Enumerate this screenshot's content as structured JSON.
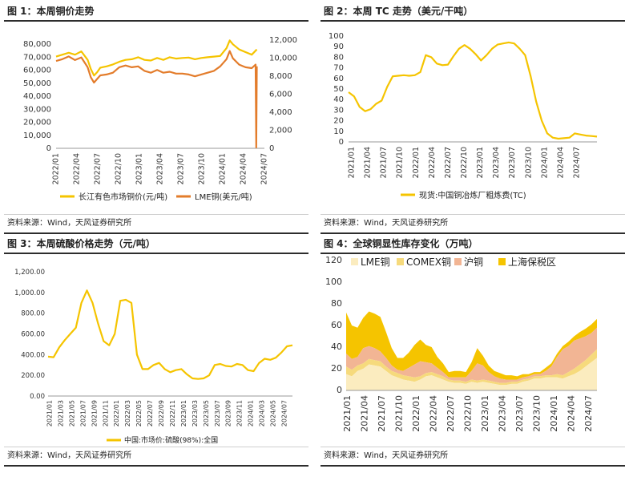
{
  "panels": [
    {
      "title": "图 1：本周铜价走势",
      "source": "资料来源：Wind，天风证券研究所"
    },
    {
      "title": "图 2：本周 TC 走势（美元/干吨）",
      "source": "资料来源：Wind，天风证券研究所"
    },
    {
      "title": "图 3：本周硫酸价格走势（元/吨）",
      "source": "资料来源：Wind，天风证券研究所"
    },
    {
      "title": "图 4：全球铜显性库存变化（万吨）",
      "source": "资料来源：Wind，天风证券研究所"
    }
  ],
  "chart_data": [
    {
      "type": "line",
      "title": "图 1：本周铜价走势",
      "x_ticks": [
        "2022/01",
        "2022/04",
        "2022/07",
        "2022/10",
        "2023/01",
        "2023/04",
        "2023/07",
        "2023/10",
        "2024/01",
        "2024/04",
        "2024/07"
      ],
      "y_left_ticks": [
        "0",
        "10,000",
        "20,000",
        "30,000",
        "40,000",
        "50,000",
        "60,000",
        "70,000",
        "80,000"
      ],
      "y_right_ticks": [
        "0",
        "2,000",
        "4,000",
        "6,000",
        "8,000",
        "10,000",
        "12,000"
      ],
      "ylim_left": [
        0,
        90000
      ],
      "ylim_right": [
        0,
        13000
      ],
      "x_range": [
        0,
        33
      ],
      "legend_position": "bottom",
      "colors": {
        "cj": "#f5c400",
        "lme": "#e37c2b"
      },
      "series": [
        {
          "name": "长江有色市场铜价(元/吨)",
          "axis": "left",
          "x": [
            0,
            1,
            2,
            3,
            4,
            5,
            5.5,
            6,
            6.5,
            7,
            8,
            9,
            10,
            11,
            12,
            13,
            14,
            15,
            16,
            17,
            18,
            19,
            20,
            21,
            22,
            23,
            24,
            25,
            26,
            27,
            27.5,
            28,
            29,
            30,
            31,
            31.8
          ],
          "y": [
            70500,
            72000,
            73500,
            72000,
            74500,
            68000,
            61000,
            56000,
            58500,
            62000,
            63000,
            64500,
            66500,
            68000,
            68500,
            70000,
            68000,
            67500,
            69500,
            68000,
            70000,
            69000,
            69500,
            69800,
            68500,
            69500,
            70000,
            70500,
            71000,
            77000,
            83000,
            80000,
            76000,
            74000,
            72000,
            76000
          ]
        },
        {
          "name": "LME铜(美元/吨)",
          "axis": "right",
          "x": [
            0,
            1,
            2,
            3,
            4,
            5,
            5.5,
            6,
            6.5,
            7,
            8,
            9,
            10,
            11,
            12,
            13,
            14,
            15,
            16,
            17,
            18,
            19,
            20,
            21,
            22,
            23,
            24,
            25,
            26,
            27,
            27.5,
            28,
            29,
            30,
            31,
            31.6,
            31.7,
            31.8
          ],
          "y": [
            9700,
            9900,
            10200,
            9800,
            10100,
            9000,
            7900,
            7300,
            7700,
            8100,
            8200,
            8400,
            9000,
            9200,
            9000,
            9100,
            8600,
            8400,
            8700,
            8400,
            8500,
            8300,
            8300,
            8200,
            8000,
            8200,
            8400,
            8600,
            9100,
            9900,
            10800,
            10000,
            9300,
            9000,
            8900,
            9300,
            100,
            9100
          ]
        }
      ]
    },
    {
      "type": "line",
      "title": "图 2：本周 TC 走势（美元/干吨）",
      "x_ticks": [
        "2021/01",
        "2021/04",
        "2021/07",
        "2021/10",
        "2022/01",
        "2022/04",
        "2022/07",
        "2022/10",
        "2023/01",
        "2023/04",
        "2023/07",
        "2023/10",
        "2024/01",
        "2024/04",
        "2024/07"
      ],
      "y_ticks": [
        "0",
        "10",
        "20",
        "30",
        "40",
        "50",
        "60",
        "70",
        "80",
        "90",
        "100"
      ],
      "ylim": [
        0,
        100
      ],
      "x_range": [
        0,
        45
      ],
      "legend_position": "bottom",
      "colors": {
        "tc": "#f5c400"
      },
      "series": [
        {
          "name": "现货:中国铜冶炼厂粗炼费(TC)",
          "x": [
            0,
            1,
            2,
            3,
            4,
            5,
            6,
            7,
            8,
            9,
            10,
            11,
            12,
            13,
            14,
            15,
            16,
            17,
            18,
            19,
            20,
            21,
            22,
            23,
            24,
            25,
            26,
            27,
            28,
            29,
            30,
            31,
            32,
            33,
            34,
            35,
            36,
            37,
            38,
            39,
            40,
            41,
            42,
            43,
            44,
            45
          ],
          "y": [
            47,
            43,
            33,
            29,
            31,
            36,
            39,
            52,
            62,
            62.5,
            63,
            62.5,
            63,
            66,
            82,
            80,
            74,
            72.5,
            73,
            81,
            88,
            91.5,
            88,
            83,
            77,
            82,
            88,
            92,
            93,
            94,
            93,
            88,
            82,
            62,
            38,
            20,
            8,
            4,
            3,
            3.5,
            4,
            8,
            7,
            6,
            5.5,
            5
          ]
        }
      ]
    },
    {
      "type": "line",
      "title": "图 3：本周硫酸价格走势（元/吨）",
      "x_ticks": [
        "2021/01",
        "2021/03",
        "2021/05",
        "2021/07",
        "2021/09",
        "2021/11",
        "2022/01",
        "2022/03",
        "2022/05",
        "2022/07",
        "2022/09",
        "2022/11",
        "2023/01",
        "2023/03",
        "2023/05",
        "2023/07",
        "2023/09",
        "2023/11",
        "2024/01",
        "2024/03",
        "2024/05",
        "2024/07"
      ],
      "y_ticks": [
        "0.00",
        "200.00",
        "400.00",
        "600.00",
        "800.00",
        "1,000.00",
        "1,200.00"
      ],
      "ylim": [
        0,
        1200
      ],
      "x_range": [
        0,
        44
      ],
      "legend_position": "bottom",
      "colors": {
        "acid": "#f5c400"
      },
      "series": [
        {
          "name": "中国:市场价:硫酸(98%):全国",
          "x": [
            0,
            1,
            2,
            3,
            4,
            5,
            6,
            7,
            8,
            9,
            10,
            11,
            12,
            13,
            14,
            15,
            16,
            17,
            18,
            19,
            20,
            21,
            22,
            23,
            24,
            25,
            26,
            27,
            28,
            29,
            30,
            31,
            32,
            33,
            34,
            35,
            36,
            37,
            38,
            39,
            40,
            41,
            42,
            43,
            44
          ],
          "y": [
            380,
            375,
            470,
            540,
            600,
            660,
            900,
            1020,
            900,
            700,
            530,
            490,
            600,
            920,
            930,
            900,
            400,
            260,
            260,
            300,
            320,
            260,
            230,
            250,
            260,
            210,
            170,
            165,
            170,
            200,
            300,
            310,
            290,
            285,
            310,
            300,
            250,
            240,
            320,
            360,
            350,
            370,
            420,
            480,
            490
          ]
        }
      ]
    },
    {
      "type": "area",
      "title": "图 4：全球铜显性库存变化（万吨）",
      "stacked": true,
      "x_ticks": [
        "2021/01",
        "2021/04",
        "2021/07",
        "2021/10",
        "2022/01",
        "2022/04",
        "2022/07",
        "2022/10",
        "2023/01",
        "2023/04",
        "2023/07",
        "2023/10",
        "2024/01",
        "2024/04",
        "2024/07"
      ],
      "y_ticks": [
        "0",
        "20",
        "40",
        "60",
        "80",
        "100",
        "120"
      ],
      "ylim": [
        0,
        120
      ],
      "x_range": [
        0,
        44
      ],
      "legend_position": "top-left",
      "colors": {
        "lme": "#fbecbf",
        "comex": "#f6da7c",
        "shfe": "#f2b594",
        "bonded": "#f5c400"
      },
      "x": [
        0,
        1,
        2,
        3,
        4,
        5,
        6,
        7,
        8,
        9,
        10,
        11,
        12,
        13,
        14,
        15,
        16,
        17,
        18,
        19,
        20,
        21,
        22,
        23,
        24,
        25,
        26,
        27,
        28,
        29,
        30,
        31,
        32,
        33,
        34,
        35,
        36,
        37,
        38,
        39,
        40,
        41,
        42,
        43,
        44
      ],
      "series": [
        {
          "name": "LME铜",
          "values": [
            15,
            13,
            18,
            20,
            24,
            23,
            22,
            18,
            14,
            12,
            10,
            9,
            8,
            10,
            13,
            14,
            12,
            10,
            8,
            7,
            7,
            6,
            8,
            7,
            8,
            7,
            6,
            5,
            5,
            6,
            6,
            8,
            9,
            11,
            11,
            12,
            12,
            12,
            11,
            13,
            15,
            18,
            22,
            26,
            30
          ]
        },
        {
          "name": "COMEX铜",
          "values": [
            7,
            6,
            5,
            5,
            5,
            5,
            5,
            4,
            4,
            4,
            4,
            4,
            4,
            3,
            3,
            3,
            3,
            3,
            2,
            2,
            2,
            2,
            2,
            2,
            2,
            2,
            2,
            2,
            2,
            2,
            2,
            2,
            2,
            2,
            2,
            2,
            2,
            3,
            3,
            4,
            5,
            6,
            6,
            7,
            8
          ]
        },
        {
          "name": "沪铜",
          "values": [
            12,
            10,
            8,
            14,
            12,
            11,
            9,
            8,
            5,
            3,
            4,
            8,
            12,
            14,
            10,
            8,
            6,
            4,
            2,
            3,
            3,
            4,
            8,
            16,
            13,
            8,
            5,
            4,
            3,
            2,
            2,
            2,
            2,
            2,
            2,
            4,
            8,
            16,
            24,
            24,
            26,
            24,
            22,
            20,
            20
          ]
        },
        {
          "name": "上海保税区",
          "values": [
            38,
            31,
            27,
            28,
            32,
            32,
            32,
            24,
            16,
            11,
            12,
            14,
            18,
            20,
            16,
            15,
            10,
            8,
            5,
            6,
            6,
            5,
            8,
            14,
            9,
            6,
            5,
            5,
            4,
            4,
            3,
            3,
            2,
            2,
            2,
            3,
            3,
            3,
            3,
            4,
            4,
            6,
            7,
            8,
            8
          ]
        }
      ]
    }
  ]
}
